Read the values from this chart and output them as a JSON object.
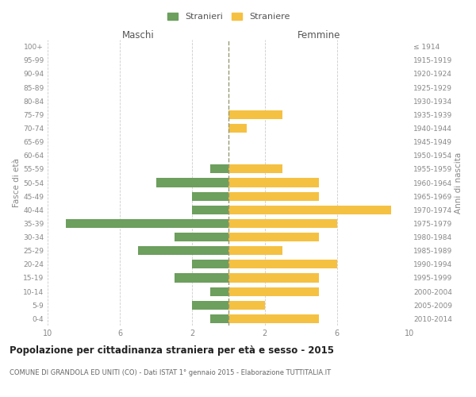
{
  "age_groups": [
    "100+",
    "95-99",
    "90-94",
    "85-89",
    "80-84",
    "75-79",
    "70-74",
    "65-69",
    "60-64",
    "55-59",
    "50-54",
    "45-49",
    "40-44",
    "35-39",
    "30-34",
    "25-29",
    "20-24",
    "15-19",
    "10-14",
    "5-9",
    "0-4"
  ],
  "birth_years": [
    "≤ 1914",
    "1915-1919",
    "1920-1924",
    "1925-1929",
    "1930-1934",
    "1935-1939",
    "1940-1944",
    "1945-1949",
    "1950-1954",
    "1955-1959",
    "1960-1964",
    "1965-1969",
    "1970-1974",
    "1975-1979",
    "1980-1984",
    "1985-1989",
    "1990-1994",
    "1995-1999",
    "2000-2004",
    "2005-2009",
    "2010-2014"
  ],
  "maschi": [
    0,
    0,
    0,
    0,
    0,
    0,
    0,
    0,
    0,
    1,
    4,
    2,
    2,
    9,
    3,
    5,
    2,
    3,
    1,
    2,
    1
  ],
  "femmine": [
    0,
    0,
    0,
    0,
    0,
    3,
    1,
    0,
    0,
    3,
    5,
    5,
    9,
    6,
    5,
    3,
    6,
    5,
    5,
    2,
    5
  ],
  "maschi_color": "#6d9f5e",
  "femmine_color": "#f5c142",
  "title": "Popolazione per cittadinanza straniera per età e sesso - 2015",
  "subtitle": "COMUNE DI GRANDOLA ED UNITI (CO) - Dati ISTAT 1° gennaio 2015 - Elaborazione TUTTITALIA.IT",
  "xlabel_left": "Maschi",
  "xlabel_right": "Femmine",
  "ylabel_left": "Fasce di età",
  "ylabel_right": "Anni di nascita",
  "xlim": 10,
  "legend_stranieri": "Stranieri",
  "legend_straniere": "Straniere",
  "background_color": "#ffffff",
  "grid_color": "#cccccc"
}
